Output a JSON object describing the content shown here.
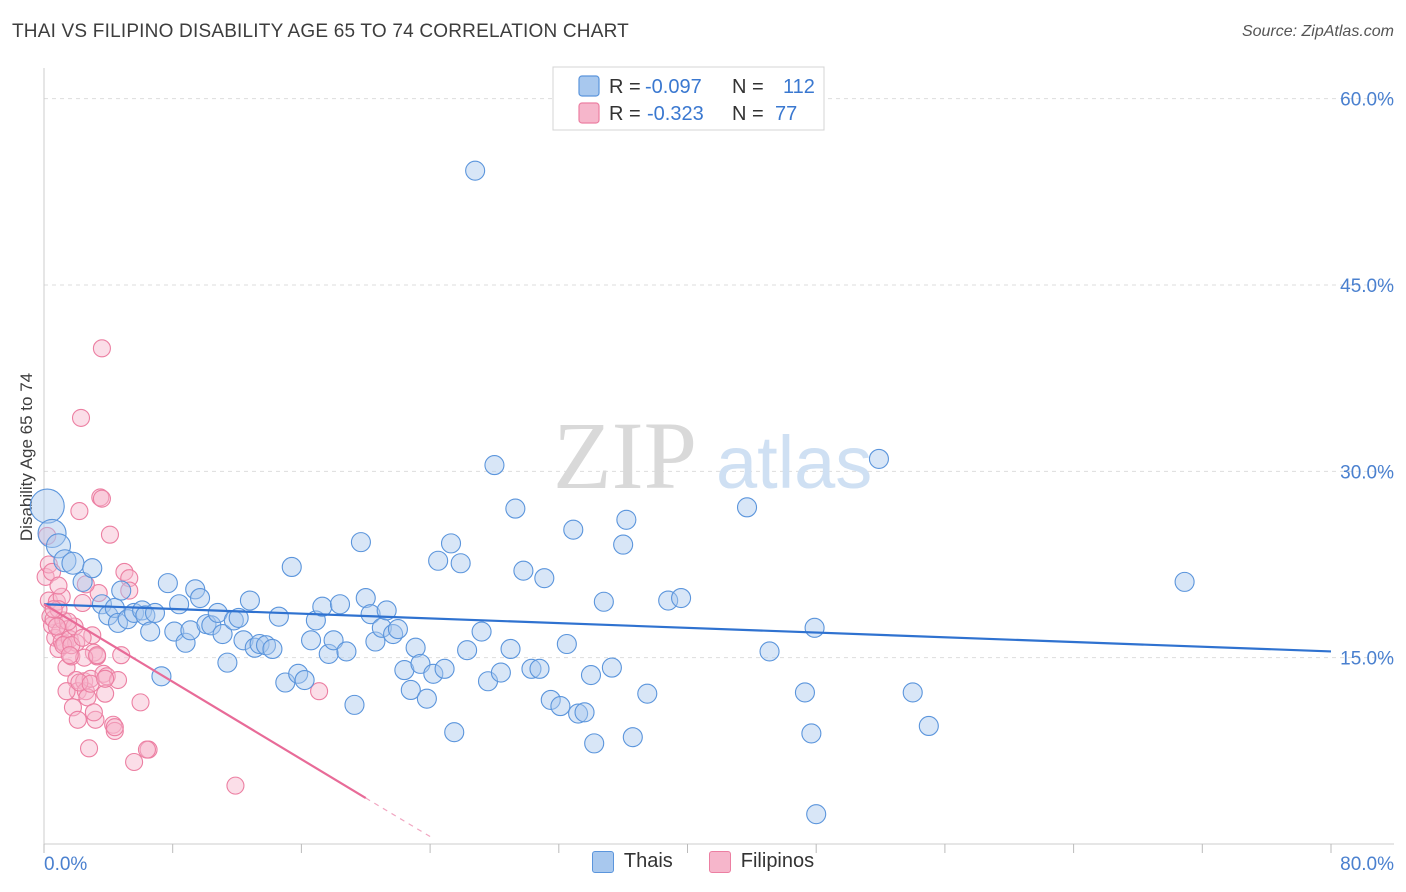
{
  "header": {
    "title": "THAI VS FILIPINO DISABILITY AGE 65 TO 74 CORRELATION CHART",
    "source": "Source: ZipAtlas.com"
  },
  "watermark": {
    "zip": "ZIP",
    "atlas": "atlas"
  },
  "legend_top": {
    "rows": [
      {
        "r_label": "R =",
        "r_value": "-0.097",
        "n_label": "N =",
        "n_value": "112"
      },
      {
        "r_label": "R =",
        "r_value": "-0.323",
        "n_label": "N =",
        "n_value": "77"
      }
    ]
  },
  "legend_bottom": {
    "items": [
      "Thais",
      "Filipinos"
    ]
  },
  "colors": {
    "thai_fill": "#a8c8ee",
    "thai_stroke": "#5b95dc",
    "thai_line": "#2f72d0",
    "filipino_fill": "#f6b6cb",
    "filipino_stroke": "#ec7fa2",
    "filipino_line": "#e86b98",
    "axis_text": "#4a80cf",
    "grid": "#dddddd"
  },
  "chart_data": {
    "type": "scatter",
    "title": "THAI VS FILIPINO DISABILITY AGE 65 TO 74 CORRELATION CHART",
    "xlabel": "",
    "ylabel": "Disability Age 65 to 74",
    "xlim": [
      0,
      80
    ],
    "ylim": [
      0,
      61.5
    ],
    "x_tick_labels": [
      "0.0%",
      "80.0%"
    ],
    "y_ticks": [
      15,
      30,
      45,
      60
    ],
    "y_tick_labels": [
      "15.0%",
      "30.0%",
      "45.0%",
      "60.0%"
    ],
    "grid": true,
    "legend_position": "top-center",
    "series": [
      {
        "name": "Thais",
        "R": -0.097,
        "N": 112,
        "trend": {
          "x": [
            0,
            80
          ],
          "y": [
            19.3,
            15.5
          ]
        },
        "points": [
          [
            0.2,
            27.2
          ],
          [
            0.5,
            25.0
          ],
          [
            0.9,
            24.0
          ],
          [
            1.3,
            22.8
          ],
          [
            1.8,
            22.6
          ],
          [
            2.4,
            21.1
          ],
          [
            3.0,
            22.2
          ],
          [
            3.6,
            19.3
          ],
          [
            4.0,
            18.4
          ],
          [
            4.4,
            19.0
          ],
          [
            4.6,
            17.8
          ],
          [
            4.8,
            20.4
          ],
          [
            5.2,
            18.1
          ],
          [
            5.6,
            18.6
          ],
          [
            6.1,
            18.8
          ],
          [
            6.3,
            18.4
          ],
          [
            6.6,
            17.1
          ],
          [
            6.9,
            18.6
          ],
          [
            7.3,
            13.5
          ],
          [
            7.7,
            21.0
          ],
          [
            8.1,
            17.1
          ],
          [
            8.4,
            19.3
          ],
          [
            8.8,
            16.2
          ],
          [
            9.1,
            17.2
          ],
          [
            9.4,
            20.5
          ],
          [
            9.7,
            19.8
          ],
          [
            10.1,
            17.7
          ],
          [
            10.4,
            17.6
          ],
          [
            10.8,
            18.6
          ],
          [
            11.1,
            16.9
          ],
          [
            11.4,
            14.6
          ],
          [
            11.8,
            18.0
          ],
          [
            12.1,
            18.2
          ],
          [
            12.4,
            16.4
          ],
          [
            12.8,
            19.6
          ],
          [
            13.1,
            15.8
          ],
          [
            13.4,
            16.1
          ],
          [
            13.8,
            16.0
          ],
          [
            14.2,
            15.7
          ],
          [
            14.6,
            18.3
          ],
          [
            15.0,
            13.0
          ],
          [
            15.4,
            22.3
          ],
          [
            15.8,
            13.7
          ],
          [
            16.2,
            13.2
          ],
          [
            16.6,
            16.4
          ],
          [
            16.9,
            18.0
          ],
          [
            17.3,
            19.1
          ],
          [
            17.7,
            15.3
          ],
          [
            18.0,
            16.4
          ],
          [
            18.4,
            19.3
          ],
          [
            18.8,
            15.5
          ],
          [
            19.3,
            11.2
          ],
          [
            19.7,
            24.3
          ],
          [
            20.0,
            19.8
          ],
          [
            20.3,
            18.5
          ],
          [
            20.6,
            16.3
          ],
          [
            21.0,
            17.4
          ],
          [
            21.3,
            18.8
          ],
          [
            21.7,
            16.9
          ],
          [
            22.0,
            17.3
          ],
          [
            22.4,
            14.0
          ],
          [
            22.8,
            12.4
          ],
          [
            23.1,
            15.8
          ],
          [
            23.4,
            14.5
          ],
          [
            23.8,
            11.7
          ],
          [
            24.2,
            13.7
          ],
          [
            24.5,
            22.8
          ],
          [
            24.9,
            14.1
          ],
          [
            25.3,
            24.2
          ],
          [
            25.5,
            9.0
          ],
          [
            25.9,
            22.6
          ],
          [
            26.3,
            15.6
          ],
          [
            26.8,
            54.2
          ],
          [
            27.2,
            17.1
          ],
          [
            27.6,
            13.1
          ],
          [
            28.0,
            30.5
          ],
          [
            28.4,
            13.8
          ],
          [
            29.0,
            15.7
          ],
          [
            29.3,
            27.0
          ],
          [
            29.8,
            22.0
          ],
          [
            30.3,
            14.1
          ],
          [
            30.8,
            14.1
          ],
          [
            31.1,
            21.4
          ],
          [
            31.5,
            11.6
          ],
          [
            32.1,
            11.1
          ],
          [
            32.5,
            16.1
          ],
          [
            32.9,
            25.3
          ],
          [
            33.2,
            10.5
          ],
          [
            33.6,
            10.6
          ],
          [
            34.0,
            13.6
          ],
          [
            34.2,
            8.1
          ],
          [
            34.8,
            19.5
          ],
          [
            35.3,
            14.2
          ],
          [
            36.0,
            24.1
          ],
          [
            36.2,
            26.1
          ],
          [
            36.6,
            8.6
          ],
          [
            37.5,
            12.1
          ],
          [
            38.8,
            19.6
          ],
          [
            39.6,
            19.8
          ],
          [
            43.7,
            27.1
          ],
          [
            45.1,
            15.5
          ],
          [
            47.3,
            12.2
          ],
          [
            47.7,
            8.9
          ],
          [
            47.9,
            17.4
          ],
          [
            48.0,
            2.4
          ],
          [
            51.9,
            31.0
          ],
          [
            54.0,
            12.2
          ],
          [
            55.0,
            9.5
          ],
          [
            70.9,
            21.1
          ]
        ]
      },
      {
        "name": "Filipinos",
        "R": -0.323,
        "N": 77,
        "trend": {
          "x": [
            0,
            20
          ],
          "y": [
            19.3,
            3.7
          ],
          "dashed_to": {
            "x": 24,
            "y": 0.6
          }
        },
        "points": [
          [
            0.1,
            21.5
          ],
          [
            0.2,
            24.8
          ],
          [
            0.3,
            19.6
          ],
          [
            0.4,
            18.3
          ],
          [
            0.5,
            17.6
          ],
          [
            0.6,
            18.1
          ],
          [
            0.7,
            16.6
          ],
          [
            0.8,
            19.5
          ],
          [
            0.9,
            15.7
          ],
          [
            1.0,
            17.1
          ],
          [
            1.1,
            16.3
          ],
          [
            1.2,
            18.0
          ],
          [
            1.3,
            16.1
          ],
          [
            1.4,
            14.2
          ],
          [
            1.5,
            17.3
          ],
          [
            1.6,
            16.5
          ],
          [
            1.7,
            15.1
          ],
          [
            1.8,
            11.0
          ],
          [
            1.9,
            17.5
          ],
          [
            2.0,
            13.2
          ],
          [
            2.1,
            12.3
          ],
          [
            2.1,
            10.0
          ],
          [
            2.2,
            26.8
          ],
          [
            2.3,
            34.3
          ],
          [
            2.4,
            19.4
          ],
          [
            2.5,
            13.1
          ],
          [
            2.6,
            12.3
          ],
          [
            2.7,
            11.8
          ],
          [
            2.8,
            7.7
          ],
          [
            2.9,
            13.3
          ],
          [
            3.0,
            16.8
          ],
          [
            3.1,
            15.4
          ],
          [
            3.2,
            10.0
          ],
          [
            3.3,
            15.1
          ],
          [
            3.4,
            20.2
          ],
          [
            3.5,
            27.9
          ],
          [
            3.6,
            27.8
          ],
          [
            3.7,
            13.7
          ],
          [
            3.8,
            12.1
          ],
          [
            3.9,
            13.5
          ],
          [
            4.1,
            24.9
          ],
          [
            4.3,
            9.6
          ],
          [
            4.6,
            13.2
          ],
          [
            4.8,
            15.2
          ],
          [
            5.0,
            21.9
          ],
          [
            5.3,
            21.4
          ],
          [
            5.6,
            6.6
          ],
          [
            6.0,
            11.4
          ],
          [
            6.5,
            7.6
          ],
          [
            4.4,
            9.1
          ],
          [
            3.6,
            39.9
          ],
          [
            1.1,
            19.9
          ],
          [
            0.9,
            18.9
          ],
          [
            1.5,
            17.9
          ],
          [
            2.6,
            20.9
          ],
          [
            3.1,
            10.6
          ],
          [
            6.4,
            7.6
          ],
          [
            11.9,
            4.7
          ],
          [
            17.1,
            12.3
          ],
          [
            5.3,
            20.4
          ],
          [
            0.3,
            22.5
          ],
          [
            0.6,
            18.9
          ],
          [
            2.0,
            16.2
          ],
          [
            1.2,
            16.0
          ],
          [
            1.7,
            16.0
          ],
          [
            2.5,
            15.0
          ],
          [
            3.3,
            15.2
          ],
          [
            4.4,
            9.4
          ],
          [
            1.4,
            12.3
          ],
          [
            2.2,
            13.0
          ],
          [
            0.5,
            21.9
          ],
          [
            0.8,
            17.5
          ],
          [
            1.6,
            15.2
          ],
          [
            2.9,
            12.9
          ],
          [
            3.8,
            13.3
          ],
          [
            2.4,
            16.6
          ],
          [
            0.9,
            20.8
          ]
        ]
      }
    ]
  }
}
